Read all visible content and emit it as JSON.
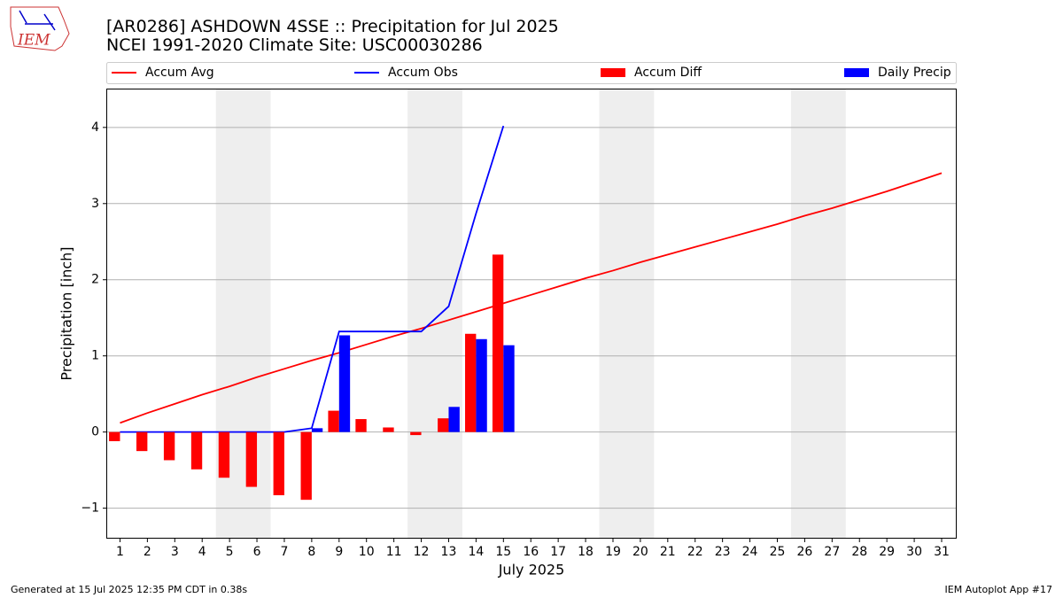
{
  "chart_data": {
    "type": "bar_line",
    "title": "[AR0286] ASHDOWN 4SSE :: Precipitation for Jul 2025",
    "subtitle": "NCEI 1991-2020 Climate Site: USC00030286",
    "xlabel": "July 2025",
    "ylabel": "Precipitation [inch]",
    "footer_left": "Generated at 15 Jul 2025 12:35 PM CDT in 0.38s",
    "footer_right": "IEM Autoplot App #17",
    "logo_text": "IEM",
    "x": [
      1,
      2,
      3,
      4,
      5,
      6,
      7,
      8,
      9,
      10,
      11,
      12,
      13,
      14,
      15,
      16,
      17,
      18,
      19,
      20,
      21,
      22,
      23,
      24,
      25,
      26,
      27,
      28,
      29,
      30,
      31
    ],
    "xlim": [
      0.5,
      31.55
    ],
    "xticks": [
      1,
      2,
      3,
      4,
      5,
      6,
      7,
      8,
      9,
      10,
      11,
      12,
      13,
      14,
      15,
      16,
      17,
      18,
      19,
      20,
      21,
      22,
      23,
      24,
      25,
      26,
      27,
      28,
      29,
      30,
      31
    ],
    "ylim": [
      -1.4,
      4.51
    ],
    "yticks": [
      {
        "value": -1,
        "label": "−1"
      },
      0,
      1,
      2,
      3,
      4
    ],
    "grid": true,
    "shaded_spans": [
      [
        4.5,
        6.5
      ],
      [
        11.5,
        13.5
      ],
      [
        18.5,
        20.5
      ],
      [
        25.5,
        27.5
      ]
    ],
    "shade_color": "#eeeeee",
    "series": [
      {
        "name": "Accum Avg",
        "kind": "line",
        "color": "#ff0000",
        "values": [
          0.12,
          0.25,
          0.37,
          0.49,
          0.6,
          0.72,
          0.83,
          0.94,
          1.04,
          1.15,
          1.26,
          1.36,
          1.47,
          1.58,
          1.69,
          1.8,
          1.91,
          2.02,
          2.12,
          2.23,
          2.33,
          2.43,
          2.53,
          2.63,
          2.73,
          2.84,
          2.94,
          3.05,
          3.16,
          3.28,
          3.4
        ]
      },
      {
        "name": "Accum Obs",
        "kind": "line",
        "color": "#0000ff",
        "values": [
          0,
          0,
          0,
          0,
          0,
          0,
          0,
          0.05,
          1.32,
          1.32,
          1.32,
          1.32,
          1.65,
          2.87,
          4.02,
          null,
          null,
          null,
          null,
          null,
          null,
          null,
          null,
          null,
          null,
          null,
          null,
          null,
          null,
          null,
          null
        ]
      },
      {
        "name": "Accum Diff",
        "kind": "bar",
        "color": "#ff0000",
        "offset": -0.4,
        "width": 0.4,
        "values": [
          -0.12,
          -0.25,
          -0.37,
          -0.49,
          -0.6,
          -0.72,
          -0.83,
          -0.89,
          0.28,
          0.17,
          0.06,
          -0.04,
          0.18,
          1.29,
          2.33,
          null,
          null,
          null,
          null,
          null,
          null,
          null,
          null,
          null,
          null,
          null,
          null,
          null,
          null,
          null,
          null
        ]
      },
      {
        "name": "Daily Precip",
        "kind": "bar",
        "color": "#0000ff",
        "offset": 0,
        "width": 0.4,
        "values": [
          0,
          0,
          0,
          0,
          0,
          0,
          0,
          0.05,
          1.27,
          0,
          0,
          0,
          0.33,
          1.22,
          1.14,
          null,
          null,
          null,
          null,
          null,
          null,
          null,
          null,
          null,
          null,
          null,
          null,
          null,
          null,
          null,
          null
        ]
      }
    ]
  }
}
